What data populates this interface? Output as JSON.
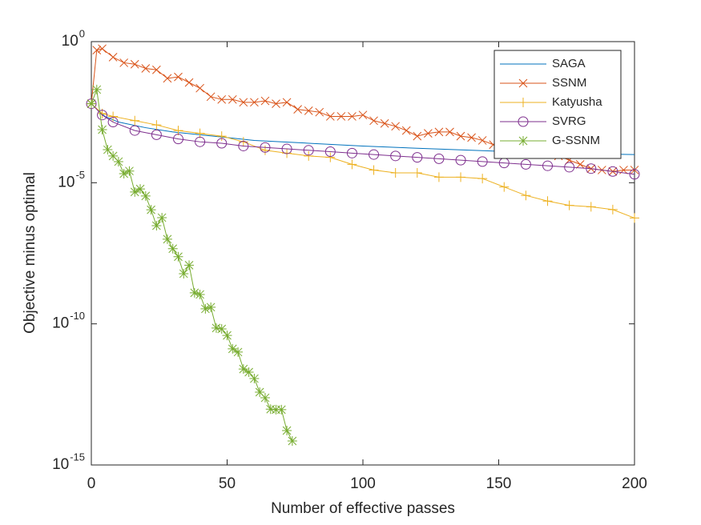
{
  "chart_data": {
    "type": "line",
    "xlabel": "Number of effective passes",
    "ylabel": "Objective minus optimal",
    "xlim": [
      0,
      200
    ],
    "xticks": [
      0,
      50,
      100,
      150,
      200
    ],
    "ylim": [
      1e-15,
      1
    ],
    "yscale": "log",
    "yticks": [
      {
        "value": 1e-15,
        "label": "10",
        "exponent": "-15"
      },
      {
        "value": 1e-10,
        "label": "10",
        "exponent": "-10"
      },
      {
        "value": 1e-05,
        "label": "10",
        "exponent": "-5"
      },
      {
        "value": 1,
        "label": "10",
        "exponent": "0"
      }
    ],
    "legend": "northeast",
    "series": [
      {
        "name": "SAGA",
        "color": "#0072BD",
        "marker": "none",
        "x": [
          0,
          5,
          10,
          20,
          30,
          40,
          50,
          60,
          80,
          100,
          120,
          140,
          160,
          180,
          200
        ],
        "values": [
          0.00631,
          0.00224,
          0.00141,
          0.000891,
          0.000631,
          0.000501,
          0.000398,
          0.000316,
          0.000251,
          0.0002,
          0.000166,
          0.000141,
          0.00012,
          0.000107,
          0.0001
        ]
      },
      {
        "name": "SSNM",
        "color": "#D95319",
        "marker": "x",
        "x": [
          0,
          2,
          4,
          8,
          12,
          16,
          20,
          24,
          28,
          32,
          36,
          40,
          44,
          48,
          52,
          56,
          60,
          64,
          68,
          72,
          76,
          80,
          84,
          88,
          92,
          96,
          100,
          104,
          108,
          112,
          116,
          120,
          124,
          128,
          132,
          136,
          140,
          144,
          148,
          152,
          156,
          160,
          164,
          168,
          172,
          176,
          180,
          184,
          188,
          192,
          196,
          200
        ],
        "values": [
          0.00631,
          0.501,
          0.562,
          0.282,
          0.178,
          0.158,
          0.112,
          0.1,
          0.0501,
          0.0562,
          0.0355,
          0.0224,
          0.0112,
          0.00891,
          0.00891,
          0.00708,
          0.00708,
          0.00794,
          0.00631,
          0.00708,
          0.00398,
          0.00355,
          0.00316,
          0.00224,
          0.00224,
          0.00224,
          0.00251,
          0.00158,
          0.00126,
          0.001,
          0.000708,
          0.000447,
          0.000562,
          0.000631,
          0.000631,
          0.000447,
          0.000398,
          0.000316,
          0.000224,
          0.0002,
          0.000178,
          0.000224,
          0.000158,
          0.000141,
          8.91e-05,
          6.31e-05,
          4.47e-05,
          3.16e-05,
          2.82e-05,
          2.51e-05,
          2.82e-05,
          2.82e-05
        ]
      },
      {
        "name": "Katyusha",
        "color": "#EDB120",
        "marker": "+",
        "x": [
          0,
          4,
          8,
          16,
          24,
          32,
          40,
          48,
          56,
          64,
          72,
          80,
          88,
          96,
          104,
          112,
          120,
          128,
          136,
          144,
          152,
          160,
          168,
          176,
          184,
          192,
          200
        ],
        "values": [
          0.00631,
          0.00282,
          0.00224,
          0.00158,
          0.00112,
          0.000708,
          0.000562,
          0.000447,
          0.000282,
          0.000141,
          0.000112,
          8.91e-05,
          7.94e-05,
          4.47e-05,
          2.82e-05,
          2.24e-05,
          2.24e-05,
          1.58e-05,
          1.58e-05,
          1.41e-05,
          7.08e-06,
          3.55e-06,
          2.24e-06,
          1.58e-06,
          1.41e-06,
          1.12e-06,
          5.62e-07
        ]
      },
      {
        "name": "SVRG",
        "color": "#7E2F8E",
        "marker": "o",
        "x": [
          0,
          4,
          8,
          16,
          24,
          32,
          40,
          48,
          56,
          64,
          72,
          80,
          88,
          96,
          104,
          112,
          120,
          128,
          136,
          144,
          152,
          160,
          168,
          176,
          184,
          192,
          200
        ],
        "values": [
          0.00631,
          0.00251,
          0.00141,
          0.000708,
          0.000501,
          0.000355,
          0.000282,
          0.000251,
          0.0002,
          0.000178,
          0.000158,
          0.000141,
          0.000126,
          0.000112,
          0.0001,
          8.91e-05,
          7.94e-05,
          7.08e-05,
          6.31e-05,
          5.62e-05,
          5.01e-05,
          4.47e-05,
          3.98e-05,
          3.55e-05,
          3.16e-05,
          2.51e-05,
          2e-05
        ]
      },
      {
        "name": "G-SSNM",
        "color": "#77AC30",
        "marker": "*",
        "x": [
          0,
          2,
          4,
          6,
          8,
          10,
          12,
          14,
          16,
          18,
          20,
          22,
          24,
          26,
          28,
          30,
          32,
          34,
          36,
          38,
          40,
          42,
          44,
          46,
          48,
          50,
          52,
          54,
          56,
          58,
          60,
          62,
          64,
          66,
          68,
          70,
          72,
          74
        ],
        "values": [
          0.00631,
          0.02,
          0.00076,
          0.000148,
          8.9e-05,
          5.6e-05,
          2.1e-05,
          2.6e-05,
          4.7e-06,
          6e-06,
          3.4e-06,
          1.1e-06,
          3e-07,
          5.8e-07,
          1e-07,
          4.6e-08,
          2.4e-08,
          6e-09,
          1.2e-08,
          1.26e-09,
          1.1e-09,
          3.4e-10,
          3.9e-10,
          7.1e-11,
          6.6e-11,
          3.9e-11,
          1.3e-11,
          1e-11,
          2.5e-12,
          1.95e-12,
          1.15e-12,
          3.8e-13,
          2.4e-13,
          9.5e-14,
          9.1e-14,
          9.1e-14,
          1.66e-14,
          7.1e-15
        ]
      }
    ]
  }
}
